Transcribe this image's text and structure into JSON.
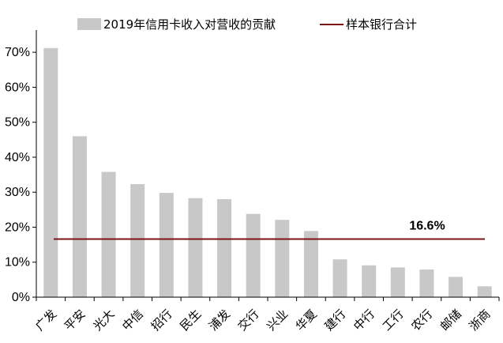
{
  "chart_data": {
    "type": "bar",
    "categories": [
      "广发",
      "平安",
      "光大",
      "中信",
      "招行",
      "民生",
      "浦发",
      "交行",
      "兴业",
      "华夏",
      "建行",
      "中行",
      "工行",
      "农行",
      "邮储",
      "浙商"
    ],
    "series": [
      {
        "name": "2019年信用卡收入对营收的贡献",
        "values": [
          71.2,
          46.0,
          35.8,
          32.3,
          29.8,
          28.3,
          28.0,
          23.8,
          22.1,
          18.9,
          10.8,
          9.1,
          8.5,
          7.9,
          5.8,
          3.1
        ],
        "color": "#c8c8c8"
      }
    ],
    "reference_line": {
      "name": "样本银行合计",
      "value": 16.6,
      "label": "16.6%",
      "color": "#7b1416"
    },
    "ylim": [
      0,
      75
    ],
    "yticks": [
      0,
      10,
      20,
      30,
      40,
      50,
      60,
      70
    ],
    "ytick_labels": [
      "0%",
      "10%",
      "20%",
      "30%",
      "40%",
      "50%",
      "60%",
      "70%"
    ],
    "legend_position": "top",
    "grid": false
  }
}
